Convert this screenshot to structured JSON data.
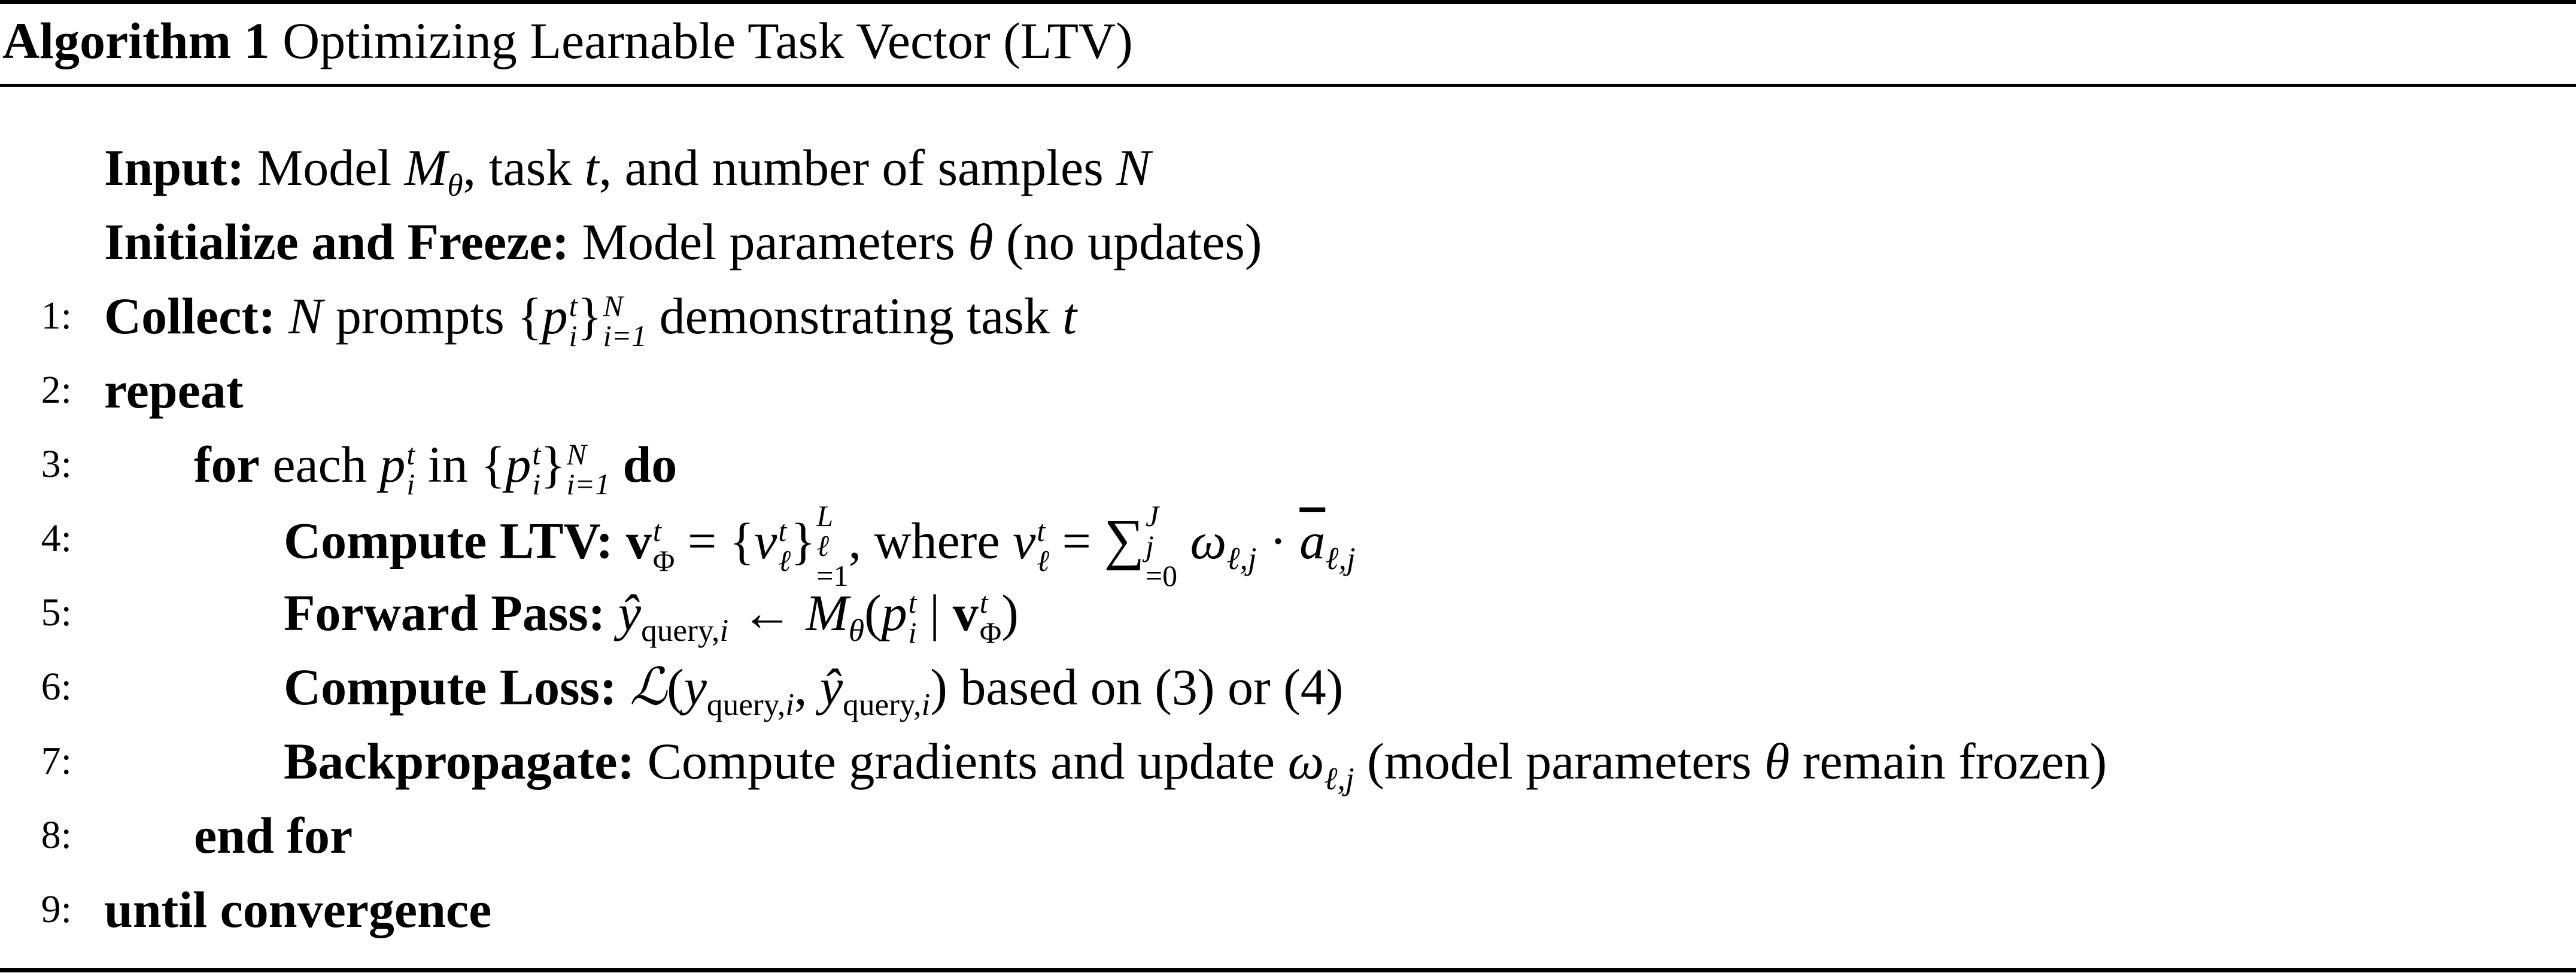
{
  "algorithm": {
    "label": "Algorithm 1",
    "title": "Optimizing Learnable Task Vector (LTV)"
  },
  "preamble": {
    "input_label": "Input:",
    "input_text_1": "Model",
    "input_text_2": ", task",
    "input_text_3": ", and number of samples",
    "init_label": "Initialize and Freeze:",
    "init_text_1": "Model parameters",
    "init_text_2": "(no updates)"
  },
  "steps": {
    "s1": {
      "num": "1:",
      "label": "Collect:",
      "text_1": "prompts",
      "text_2": "demonstrating task"
    },
    "s2": {
      "num": "2:",
      "keyword": "repeat"
    },
    "s3": {
      "num": "3:",
      "keyword_for": "for",
      "text_1": "each",
      "text_2": "in",
      "keyword_do": "do"
    },
    "s4": {
      "num": "4:",
      "label": "Compute LTV:",
      "text_1": ", where"
    },
    "s5": {
      "num": "5:",
      "label": "Forward Pass:"
    },
    "s6": {
      "num": "6:",
      "label": "Compute Loss:",
      "text_1": "based on (3) or (4)"
    },
    "s7": {
      "num": "7:",
      "label": "Backpropagate:",
      "text_1": "Compute gradients and update",
      "text_2": "(model parameters",
      "text_3": "remain frozen)"
    },
    "s8": {
      "num": "8:",
      "keyword": "end for"
    },
    "s9": {
      "num": "9:",
      "keyword": "until convergence"
    }
  }
}
